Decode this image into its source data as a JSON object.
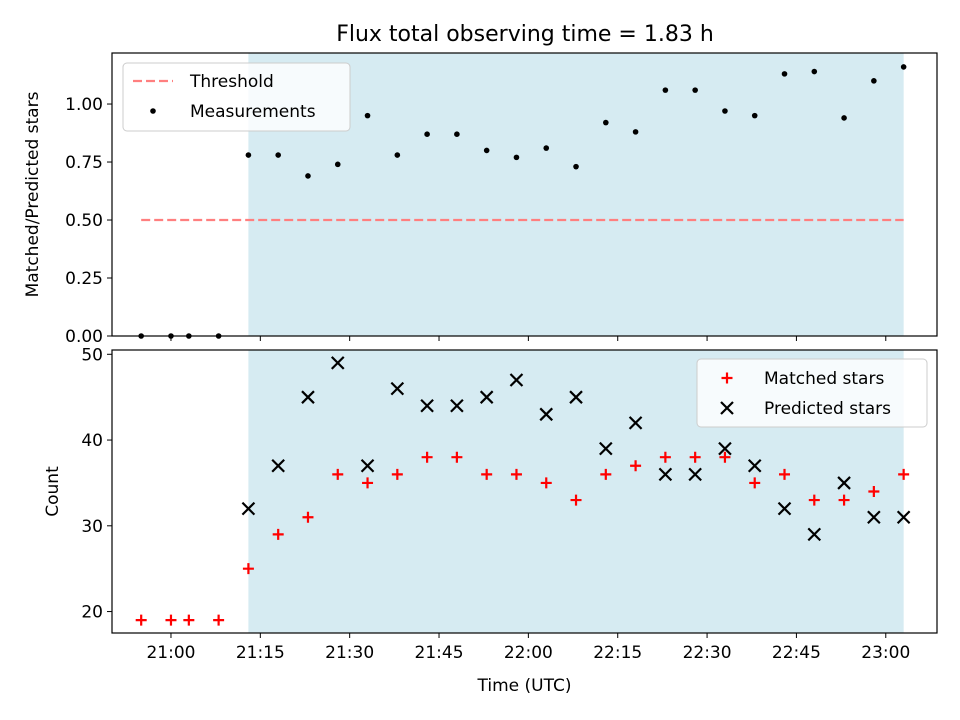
{
  "title": "Flux total observing time = 1.83 h",
  "colors": {
    "shade": "#add8e6",
    "threshold": "#ff7f7f",
    "measurement": "#000000",
    "matched": "#ff0000",
    "predicted": "#000000"
  },
  "chart_data": [
    {
      "type": "scatter",
      "ylabel": "Matched/Predicted stars",
      "xlabel": "",
      "ylim": [
        0,
        1.22
      ],
      "yticks": [
        "0.00",
        "0.25",
        "0.50",
        "0.75",
        "1.00"
      ],
      "shaded_span": [
        "21:13",
        "23:03"
      ],
      "legend_position": "upper left",
      "legend": [
        "Threshold",
        "Measurements"
      ],
      "threshold": {
        "name": "Threshold",
        "y": 0.5,
        "x_range": [
          "20:55",
          "23:03"
        ]
      },
      "series": [
        {
          "name": "Measurements",
          "x": [
            "20:55",
            "21:00",
            "21:03",
            "21:08",
            "21:13",
            "21:18",
            "21:23",
            "21:28",
            "21:33",
            "21:38",
            "21:43",
            "21:48",
            "21:53",
            "21:58",
            "22:03",
            "22:08",
            "22:13",
            "22:18",
            "22:23",
            "22:28",
            "22:33",
            "22:38",
            "22:43",
            "22:48",
            "22:53",
            "22:58",
            "23:03"
          ],
          "y": [
            0,
            0,
            0,
            0,
            0.78,
            0.78,
            0.69,
            0.74,
            0.95,
            0.78,
            0.87,
            0.87,
            0.8,
            0.77,
            0.81,
            0.73,
            0.92,
            0.88,
            1.06,
            1.06,
            0.97,
            0.95,
            1.13,
            1.14,
            0.94,
            1.1,
            1.16
          ]
        }
      ]
    },
    {
      "type": "scatter",
      "ylabel": "Count",
      "xlabel": "Time (UTC)",
      "ylim": [
        17.5,
        50.5
      ],
      "yticks": [
        "20",
        "30",
        "40",
        "50"
      ],
      "xticks": [
        "21:00",
        "21:15",
        "21:30",
        "21:45",
        "22:00",
        "22:15",
        "22:30",
        "22:45",
        "23:00"
      ],
      "shaded_span": [
        "21:13",
        "23:03"
      ],
      "legend_position": "upper right",
      "legend": [
        "Matched stars",
        "Predicted stars"
      ],
      "series": [
        {
          "name": "Matched stars",
          "x": [
            "20:55",
            "21:00",
            "21:03",
            "21:08",
            "21:13",
            "21:18",
            "21:23",
            "21:28",
            "21:33",
            "21:38",
            "21:43",
            "21:48",
            "21:53",
            "21:58",
            "22:03",
            "22:08",
            "22:13",
            "22:18",
            "22:23",
            "22:28",
            "22:33",
            "22:38",
            "22:43",
            "22:48",
            "22:53",
            "22:58",
            "23:03"
          ],
          "y": [
            19,
            19,
            19,
            19,
            25,
            29,
            31,
            36,
            35,
            36,
            38,
            38,
            36,
            36,
            35,
            33,
            36,
            37,
            38,
            38,
            38,
            35,
            36,
            33,
            33,
            34,
            36
          ]
        },
        {
          "name": "Predicted stars",
          "x": [
            "21:13",
            "21:18",
            "21:23",
            "21:28",
            "21:33",
            "21:38",
            "21:43",
            "21:48",
            "21:53",
            "21:58",
            "22:03",
            "22:08",
            "22:13",
            "22:18",
            "22:23",
            "22:28",
            "22:33",
            "22:38",
            "22:43",
            "22:48",
            "22:53",
            "22:58",
            "23:03"
          ],
          "y": [
            32,
            37,
            45,
            49,
            37,
            46,
            44,
            44,
            45,
            47,
            43,
            45,
            39,
            42,
            36,
            36,
            39,
            37,
            32,
            29,
            35,
            31,
            31
          ]
        }
      ]
    }
  ]
}
